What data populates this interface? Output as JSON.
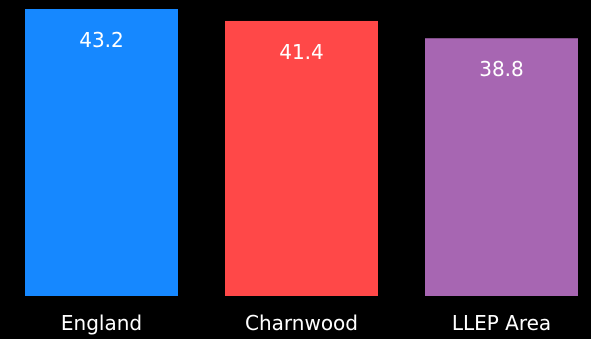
{
  "chart_data": {
    "type": "bar",
    "categories": [
      "England",
      "Charnwood",
      "LLEP Area"
    ],
    "values": [
      43.2,
      41.4,
      38.8
    ],
    "colors": [
      "#1688ff",
      "#ff4848",
      "#a766b2"
    ],
    "value_labels": [
      "43.2",
      "41.4",
      "38.8"
    ],
    "title": "",
    "xlabel": "",
    "ylabel": "",
    "ylim": [
      0,
      43.2
    ],
    "grid": false,
    "legend": "none",
    "background": "#000000"
  }
}
